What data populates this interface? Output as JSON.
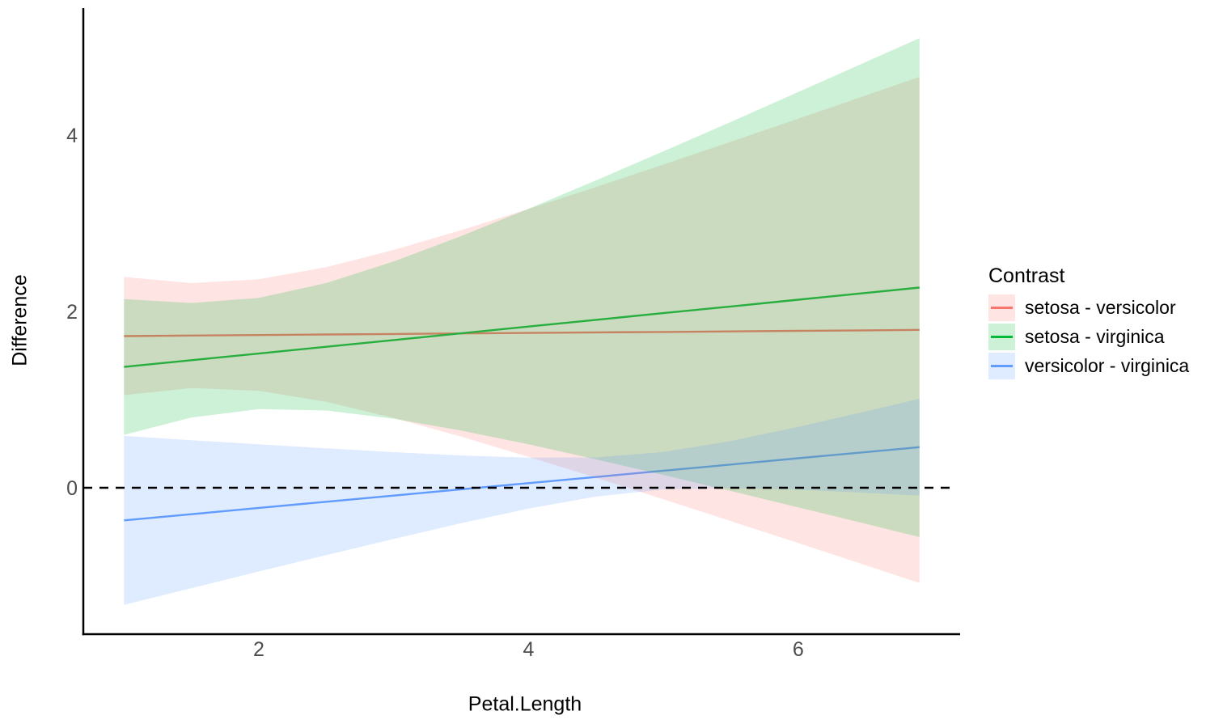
{
  "chart_data": {
    "type": "line",
    "title": "",
    "xlabel": "Petal.Length",
    "ylabel": "Difference",
    "x_tick_values": [
      2,
      4,
      6
    ],
    "x_tick_labels": [
      "2",
      "4",
      "6"
    ],
    "y_tick_values": [
      0,
      2,
      4
    ],
    "y_tick_labels": [
      "0",
      "2",
      "4"
    ],
    "x_range": [
      0.698,
      7.177
    ],
    "y_range": [
      -1.661,
      5.44
    ],
    "grid": "off",
    "legend_position": "right",
    "legend_title": "Contrast",
    "reference_line": {
      "y": 0,
      "style": "dashed",
      "color": "#000000"
    },
    "ribbon_opacity": 0.2,
    "x": [
      1,
      1.5,
      2,
      2.5,
      3,
      3.5,
      4,
      4.5,
      5,
      5.5,
      6,
      6.5,
      6.9
    ],
    "series": [
      {
        "name": "setosa - versicolor",
        "color": "#F8766D",
        "y": [
          1.72,
          1.726,
          1.732,
          1.738,
          1.744,
          1.75,
          1.756,
          1.762,
          1.767,
          1.773,
          1.779,
          1.785,
          1.79
        ],
        "lo": [
          1.05,
          1.131,
          1.1,
          0.974,
          0.791,
          0.579,
          0.35,
          0.113,
          -0.131,
          -0.378,
          -0.627,
          -0.878,
          -1.08
        ],
        "hi": [
          2.39,
          2.321,
          2.364,
          2.502,
          2.697,
          2.921,
          3.162,
          3.411,
          3.665,
          3.924,
          4.185,
          4.448,
          4.66
        ]
      },
      {
        "name": "setosa - virginica",
        "color": "#00BA38",
        "y": [
          1.37,
          1.446,
          1.522,
          1.599,
          1.675,
          1.751,
          1.828,
          1.904,
          1.98,
          2.056,
          2.133,
          2.209,
          2.27
        ],
        "lo": [
          0.6,
          0.797,
          0.891,
          0.876,
          0.783,
          0.648,
          0.492,
          0.322,
          0.145,
          -0.037,
          -0.222,
          -0.409,
          -0.56
        ],
        "hi": [
          2.14,
          2.095,
          2.153,
          2.322,
          2.567,
          2.854,
          3.164,
          3.486,
          3.815,
          4.149,
          4.488,
          4.827,
          5.1
        ]
      },
      {
        "name": "versicolor - virginica",
        "color": "#619CFF",
        "y": [
          -0.37,
          -0.3,
          -0.229,
          -0.159,
          -0.089,
          -0.018,
          0.052,
          0.122,
          0.193,
          0.263,
          0.334,
          0.404,
          0.46
        ],
        "lo": [
          -1.328,
          -1.139,
          -0.95,
          -0.764,
          -0.581,
          -0.402,
          -0.237,
          -0.1,
          -0.019,
          -0.003,
          -0.022,
          -0.057,
          -0.09
        ],
        "hi": [
          0.588,
          0.539,
          0.492,
          0.446,
          0.403,
          0.366,
          0.341,
          0.344,
          0.405,
          0.529,
          0.69,
          0.865,
          1.01
        ]
      }
    ]
  },
  "axes": {
    "tick_label_color": "#4D4D4D",
    "axis_line_color": "#000000"
  }
}
